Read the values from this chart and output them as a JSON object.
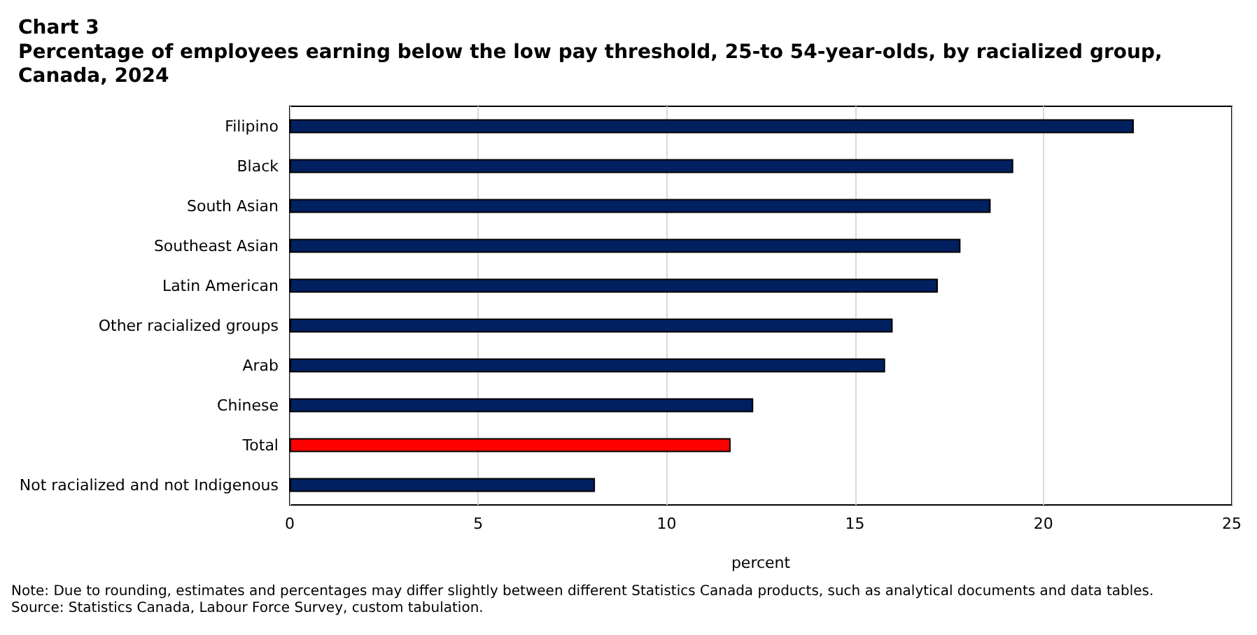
{
  "chart_data": {
    "type": "bar",
    "orientation": "horizontal",
    "title": "Chart 3",
    "subtitle": "Percentage of employees earning below the low pay threshold, 25-to 54-year-olds, by racialized group, Canada, 2024",
    "categories": [
      "Filipino",
      "Black",
      "South Asian",
      "Southeast Asian",
      "Latin American",
      "Other racialized groups",
      "Arab",
      "Chinese",
      "Total",
      "Not racialized and not Indigenous"
    ],
    "values": [
      22.4,
      19.2,
      18.6,
      17.8,
      17.2,
      16.0,
      15.8,
      12.3,
      11.7,
      8.1
    ],
    "colors": [
      "#002060",
      "#002060",
      "#002060",
      "#002060",
      "#002060",
      "#002060",
      "#002060",
      "#002060",
      "#ff0000",
      "#002060"
    ],
    "xlabel": "percent",
    "xlim": [
      0,
      25
    ],
    "xticks": [
      0,
      5,
      10,
      15,
      20,
      25
    ],
    "grid": "x",
    "annotations": [
      "Note: Due to rounding, estimates and percentages may differ slightly between different Statistics Canada products, such as analytical documents and data tables.",
      "Source: Statistics Canada, Labour Force Survey, custom tabulation."
    ]
  }
}
